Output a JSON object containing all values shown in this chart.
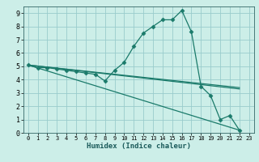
{
  "xlabel": "Humidex (Indice chaleur)",
  "ylabel": "",
  "background_color": "#cceee8",
  "grid_color": "#99cccc",
  "line_color": "#1a7a6a",
  "xlim": [
    -0.5,
    23.5
  ],
  "ylim": [
    0,
    9.5
  ],
  "xticks": [
    0,
    1,
    2,
    3,
    4,
    5,
    6,
    7,
    8,
    9,
    10,
    11,
    12,
    13,
    14,
    15,
    16,
    17,
    18,
    19,
    20,
    21,
    22,
    23
  ],
  "yticks": [
    0,
    1,
    2,
    3,
    4,
    5,
    6,
    7,
    8,
    9
  ],
  "series": [
    {
      "x": [
        0,
        1,
        2,
        3,
        4,
        5,
        6,
        7,
        8,
        9,
        10,
        11,
        12,
        13,
        14,
        15,
        16,
        17,
        18,
        19,
        20,
        21,
        22
      ],
      "y": [
        5.1,
        4.9,
        4.9,
        4.8,
        4.7,
        4.6,
        4.5,
        4.4,
        3.9,
        4.7,
        5.3,
        6.5,
        7.5,
        8.0,
        8.5,
        8.5,
        9.2,
        7.6,
        3.5,
        2.8,
        1.0,
        1.3,
        0.2
      ],
      "marker": "D",
      "markersize": 2.5,
      "linewidth": 0.9
    },
    {
      "x": [
        0,
        22
      ],
      "y": [
        5.1,
        0.2
      ],
      "marker": null,
      "markersize": 0,
      "linewidth": 0.9
    },
    {
      "x": [
        0,
        22
      ],
      "y": [
        5.1,
        3.4
      ],
      "marker": null,
      "markersize": 0,
      "linewidth": 0.9
    },
    {
      "x": [
        0,
        22
      ],
      "y": [
        5.1,
        3.3
      ],
      "marker": null,
      "markersize": 0,
      "linewidth": 0.9
    }
  ]
}
